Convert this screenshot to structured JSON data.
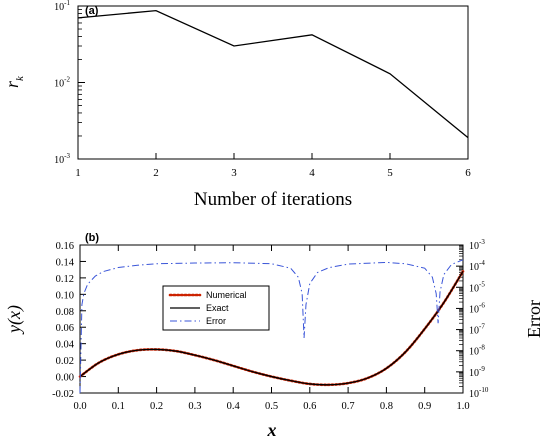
{
  "chart_data": [
    {
      "type": "line",
      "panel_label": "(a)",
      "xlabel": "Number of iterations",
      "ylabel": "r",
      "ylabel_sub": "k",
      "x": [
        1,
        2,
        3,
        4,
        5,
        6
      ],
      "series": [
        {
          "values": [
            0.07,
            0.087,
            0.03,
            0.042,
            0.013,
            0.0019
          ]
        }
      ],
      "xlim": [
        1,
        6
      ],
      "ylim": [
        0.001,
        0.1
      ],
      "yscale": "log",
      "xticks": [
        1,
        2,
        3,
        4,
        5,
        6
      ],
      "yticks": [
        {
          "value": 0.1,
          "base": "10",
          "exp": "-1"
        },
        {
          "value": 0.01,
          "base": "10",
          "exp": "-2"
        },
        {
          "value": 0.001,
          "base": "10",
          "exp": "-3"
        }
      ],
      "grid": false,
      "colors": {
        "series": "#000000"
      }
    },
    {
      "type": "line",
      "panel_label": "(b)",
      "xlabel": "x",
      "ylabel": "y(x)",
      "y2label": "Error",
      "xlim": [
        0.0,
        1.0
      ],
      "ylim": [
        -0.02,
        0.16
      ],
      "y2lim": [
        1e-10,
        0.001
      ],
      "y2scale": "log",
      "xticks": [
        "0.0",
        "0.1",
        "0.2",
        "0.3",
        "0.4",
        "0.5",
        "0.6",
        "0.7",
        "0.8",
        "0.9",
        "1.0"
      ],
      "yticks": [
        "-0.02",
        "0.00",
        "0.02",
        "0.04",
        "0.06",
        "0.08",
        "0.10",
        "0.12",
        "0.14",
        "0.16"
      ],
      "y2ticks": [
        {
          "value": -3,
          "base": "10",
          "exp": "-3"
        },
        {
          "value": -4,
          "base": "10",
          "exp": "-4"
        },
        {
          "value": -5,
          "base": "10",
          "exp": "-5"
        },
        {
          "value": -6,
          "base": "10",
          "exp": "-6"
        },
        {
          "value": -7,
          "base": "10",
          "exp": "-7"
        },
        {
          "value": -8,
          "base": "10",
          "exp": "-8"
        },
        {
          "value": -9,
          "base": "10",
          "exp": "-9"
        },
        {
          "value": -10,
          "base": "10",
          "exp": "-10"
        }
      ],
      "legend": {
        "placement": "center-left",
        "entries": [
          "Numerical",
          "Exact",
          "Error"
        ]
      },
      "series": [
        {
          "name": "Numerical",
          "axis": "left",
          "style": "dotted",
          "color": "#cc2200",
          "x": [
            0.0,
            0.05,
            0.1,
            0.15,
            0.2,
            0.25,
            0.3,
            0.35,
            0.4,
            0.45,
            0.5,
            0.55,
            0.6,
            0.65,
            0.7,
            0.75,
            0.8,
            0.85,
            0.9,
            0.95,
            1.0
          ],
          "values": [
            0.0,
            0.017,
            0.027,
            0.032,
            0.033,
            0.031,
            0.026,
            0.02,
            0.013,
            0.006,
            0.0,
            -0.005,
            -0.009,
            -0.01,
            -0.008,
            -0.002,
            0.01,
            0.03,
            0.058,
            0.09,
            0.128
          ]
        },
        {
          "name": "Exact",
          "axis": "left",
          "style": "solid",
          "color": "#000000",
          "x": [
            0.0,
            0.05,
            0.1,
            0.15,
            0.2,
            0.25,
            0.3,
            0.35,
            0.4,
            0.45,
            0.5,
            0.55,
            0.6,
            0.65,
            0.7,
            0.75,
            0.8,
            0.85,
            0.9,
            0.95,
            1.0
          ],
          "values": [
            0.0,
            0.017,
            0.027,
            0.032,
            0.033,
            0.031,
            0.026,
            0.02,
            0.013,
            0.006,
            0.0,
            -0.005,
            -0.009,
            -0.01,
            -0.008,
            -0.002,
            0.01,
            0.03,
            0.058,
            0.09,
            0.128
          ]
        },
        {
          "name": "Error",
          "axis": "right",
          "style": "dash-dot",
          "color": "#3a55d8",
          "x": [
            0.0,
            0.005,
            0.01,
            0.02,
            0.04,
            0.06,
            0.1,
            0.15,
            0.2,
            0.3,
            0.4,
            0.5,
            0.55,
            0.57,
            0.58,
            0.585,
            0.59,
            0.6,
            0.62,
            0.65,
            0.7,
            0.8,
            0.85,
            0.9,
            0.92,
            0.93,
            0.935,
            0.94,
            0.95,
            0.97,
            1.0
          ],
          "values": [
            1e-10,
            1.5e-06,
            5e-06,
            1.4e-05,
            3.4e-05,
            5.5e-05,
            8.6e-05,
            0.00011,
            0.00013,
            0.00014,
            0.000145,
            0.00013,
            8e-05,
            3e-05,
            5e-06,
            4e-08,
            1.5e-06,
            1.5e-05,
            5e-05,
            8.5e-05,
            0.000125,
            0.00015,
            0.00013,
            8e-05,
            3e-05,
            5e-06,
            2e-07,
            6e-06,
            4e-05,
            0.00012,
            0.0002
          ]
        }
      ],
      "grid": false
    }
  ]
}
